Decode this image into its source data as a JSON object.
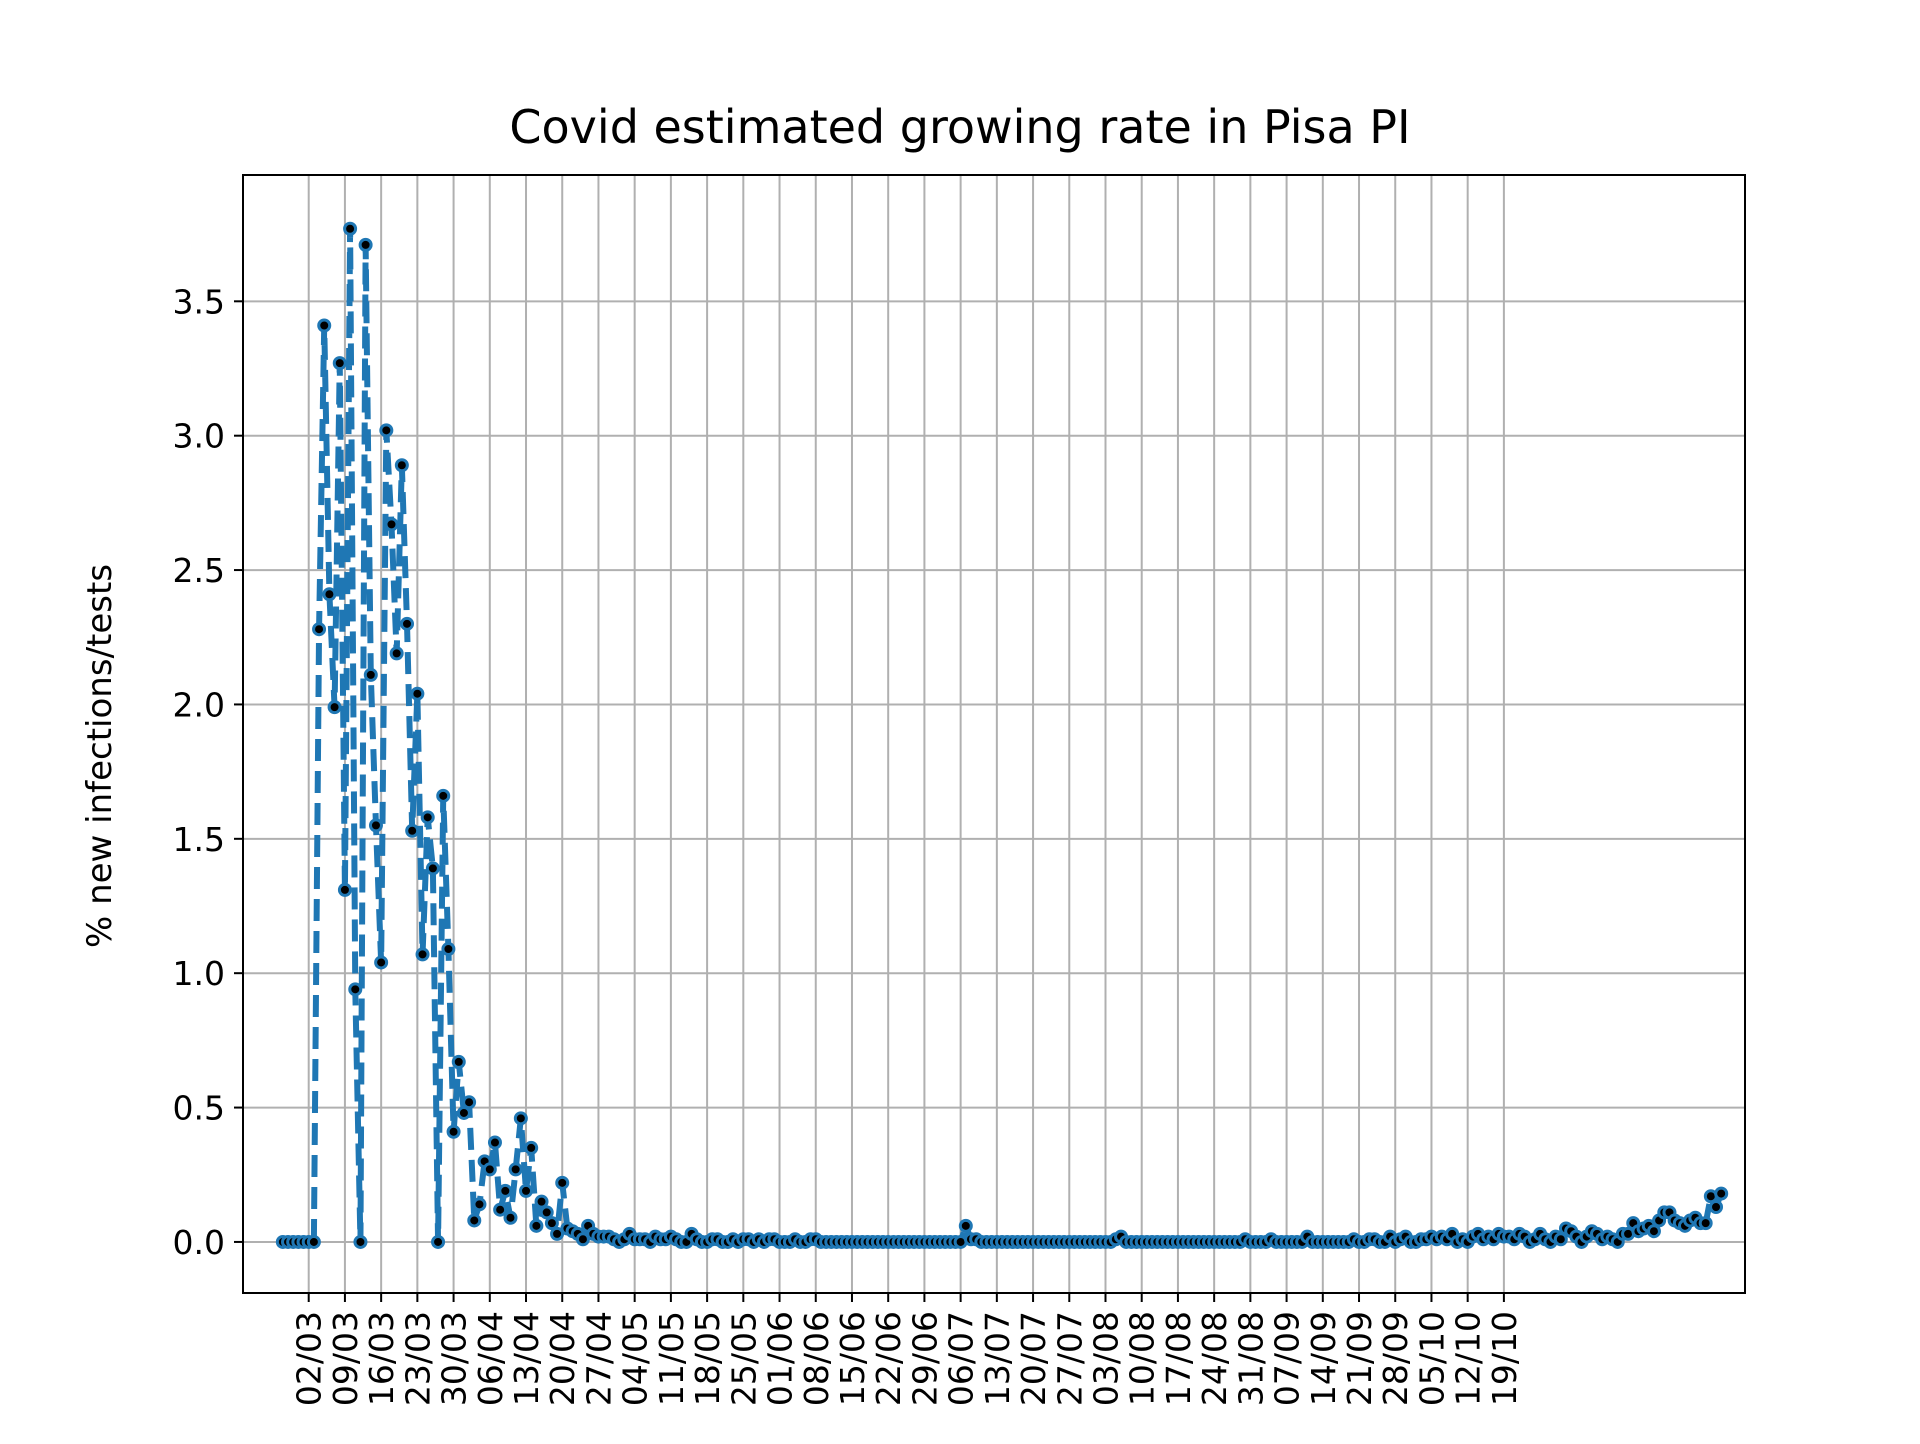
{
  "chart_data": {
    "type": "line",
    "title": "Covid estimated growing rate in Pisa PI",
    "xlabel": "",
    "ylabel": "% new infections/tests",
    "ylim": [
      -0.19,
      3.97
    ],
    "yticks": [
      "0.0",
      "0.5",
      "1.0",
      "1.5",
      "2.0",
      "2.5",
      "3.0",
      "3.5"
    ],
    "xticks": [
      "02/03",
      "09/03",
      "16/03",
      "23/03",
      "30/03",
      "06/04",
      "13/04",
      "20/04",
      "27/04",
      "04/05",
      "11/05",
      "18/05",
      "25/05",
      "01/06",
      "08/06",
      "15/06",
      "22/06",
      "29/06",
      "06/07",
      "13/07",
      "20/07",
      "27/07",
      "03/08",
      "10/08",
      "17/08",
      "24/08",
      "31/08",
      "07/09",
      "14/09",
      "21/09",
      "28/09",
      "05/10",
      "12/10",
      "19/10"
    ],
    "grid": true,
    "line_style": "dashed",
    "marker": "o",
    "series": [
      {
        "color": "#1f77b4",
        "start_day": 0,
        "values": [
          0,
          0,
          0,
          0,
          0,
          0,
          0,
          2.28,
          3.41,
          2.41,
          1.99,
          3.27,
          1.31,
          3.77,
          0.94,
          0,
          3.71,
          2.11,
          1.55,
          1.04,
          3.02,
          2.67,
          2.19,
          2.89,
          2.3,
          1.53,
          2.04,
          1.07,
          1.58,
          1.39,
          0,
          1.66,
          1.09,
          0.41,
          0.67,
          0.48,
          0.52,
          0.08,
          0.14,
          0.3,
          0.27,
          0.37,
          0.12,
          0.19,
          0.09,
          0.27,
          0.46,
          0.19,
          0.35,
          0.06,
          0.15,
          0.11,
          0.07,
          0.03,
          0.22,
          0.05,
          0.04,
          0.03,
          0.01,
          0.06,
          0.03,
          0.02,
          0.02,
          0.02,
          0.01,
          0,
          0.01,
          0.03,
          0.01,
          0.01,
          0.01,
          0,
          0.02,
          0.01,
          0.01,
          0.02,
          0.01,
          0,
          0,
          0.03,
          0.01,
          0,
          0,
          0.01,
          0.01,
          0,
          0,
          0.01,
          0,
          0.01,
          0.01,
          0,
          0.01,
          0,
          0.01,
          0.01,
          0,
          0,
          0,
          0.01,
          0,
          0,
          0.01,
          0.01,
          0,
          0,
          0,
          0,
          0,
          0,
          0,
          0,
          0,
          0,
          0,
          0,
          0,
          0,
          0,
          0,
          0,
          0,
          0,
          0,
          0,
          0,
          0,
          0,
          0,
          0,
          0,
          0,
          0.06,
          0.01,
          0.01,
          0,
          0,
          0,
          0,
          0,
          0,
          0,
          0,
          0,
          0,
          0,
          0,
          0,
          0,
          0,
          0,
          0,
          0,
          0,
          0,
          0,
          0,
          0,
          0,
          0,
          0,
          0.01,
          0.02,
          0,
          0,
          0,
          0,
          0,
          0,
          0,
          0,
          0,
          0,
          0,
          0,
          0,
          0,
          0,
          0,
          0,
          0,
          0,
          0,
          0,
          0,
          0,
          0.01,
          0,
          0,
          0,
          0,
          0.01,
          0,
          0,
          0,
          0,
          0,
          0,
          0.02,
          0,
          0,
          0,
          0,
          0,
          0,
          0,
          0,
          0.01,
          0,
          0,
          0.01,
          0.01,
          0,
          0,
          0.02,
          0,
          0.01,
          0.02,
          0,
          0,
          0.01,
          0.01,
          0.02,
          0.01,
          0.02,
          0.01,
          0.03,
          0,
          0.01,
          0,
          0.02,
          0.03,
          0.01,
          0.02,
          0.01,
          0.03,
          0.02,
          0.02,
          0.01,
          0.03,
          0.02,
          0,
          0.01,
          0.03,
          0.01,
          0,
          0.02,
          0.01,
          0.05,
          0.04,
          0.02,
          0,
          0.02,
          0.04,
          0.03,
          0.01,
          0.02,
          0.01,
          0,
          0.03,
          0.03,
          0.07,
          0.04,
          0.05,
          0.06,
          0.04,
          0.08,
          0.11,
          0.11,
          0.08,
          0.07,
          0.06,
          0.08,
          0.09,
          0.07,
          0.07,
          0.17,
          0.13,
          0.18
        ]
      }
    ]
  }
}
